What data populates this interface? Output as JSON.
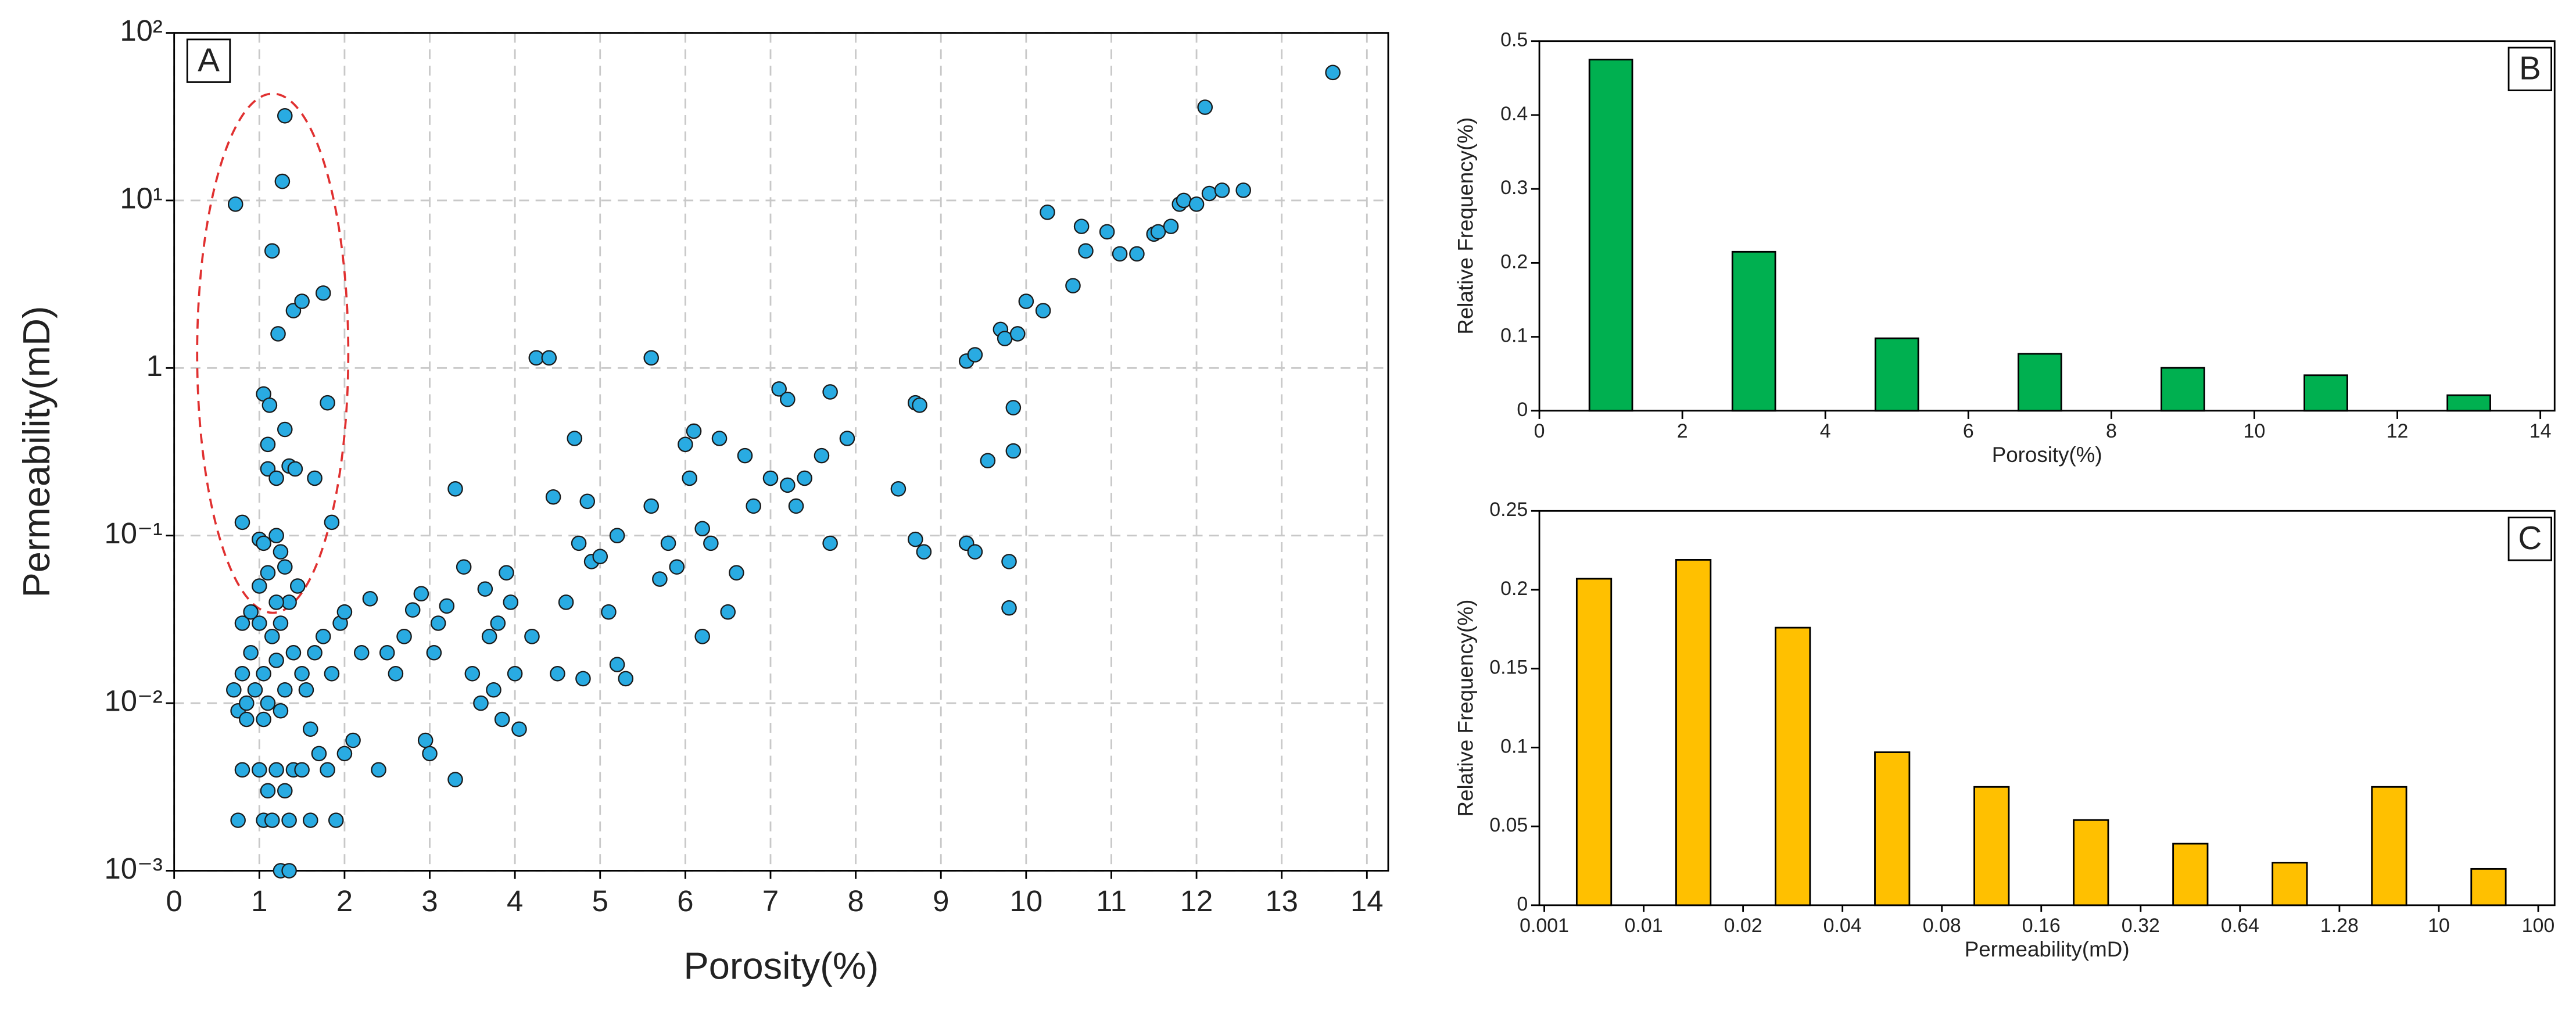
{
  "chart_data": [
    {
      "type": "scatter",
      "label": "A",
      "xlabel": "Porosity(%)",
      "ylabel": "Permeability(mD)",
      "color": "#29abe2",
      "log_y": true,
      "grid": true,
      "xlim": [
        0,
        14.25
      ],
      "ylim": [
        0.001,
        100
      ],
      "xticks": [
        0,
        1,
        2,
        3,
        4,
        5,
        6,
        7,
        8,
        9,
        10,
        11,
        12,
        13,
        14
      ],
      "yticks": [
        {
          "value": 0.001,
          "label": "10⁻³"
        },
        {
          "value": 0.01,
          "label": "10⁻²"
        },
        {
          "value": 0.1,
          "label": "10⁻¹"
        },
        1,
        {
          "value": 10,
          "label": "10¹"
        },
        {
          "value": 100,
          "label": "10²"
        }
      ],
      "x": [
        0.72,
        1.3,
        1.27,
        1.15,
        1.4,
        1.5,
        1.75,
        1.22,
        1.8,
        1.05,
        1.12,
        1.3,
        1.1,
        1.1,
        1.2,
        1.35,
        1.42,
        1.65,
        0.8,
        1.85,
        1.0,
        1.2,
        1.05,
        1.25,
        0.7,
        0.75,
        0.8,
        0.85,
        0.9,
        0.95,
        1.0,
        1.05,
        1.1,
        1.15,
        1.2,
        1.25,
        1.3,
        1.35,
        1.4,
        1.45,
        1.5,
        0.8,
        0.9,
        1.0,
        1.1,
        1.2,
        1.3,
        0.85,
        1.05,
        1.25,
        0.8,
        1.0,
        1.1,
        1.2,
        1.3,
        1.4,
        0.75,
        1.05,
        1.15,
        1.35,
        1.25,
        1.35,
        1.6,
        1.9,
        1.5,
        1.7,
        1.8,
        1.6,
        1.55,
        1.65,
        1.75,
        1.85,
        1.95,
        2.0,
        2.0,
        2.1,
        2.2,
        2.3,
        2.4,
        2.5,
        2.6,
        2.7,
        2.8,
        2.9,
        2.95,
        3.0,
        3.05,
        3.1,
        3.2,
        3.3,
        3.3,
        3.4,
        3.5,
        3.6,
        3.65,
        3.7,
        3.75,
        3.8,
        3.85,
        3.9,
        3.95,
        4.0,
        4.05,
        4.2,
        4.25,
        4.4,
        4.45,
        4.5,
        4.6,
        4.7,
        4.75,
        4.8,
        4.85,
        4.9,
        5.0,
        5.1,
        5.2,
        5.2,
        5.3,
        5.6,
        5.6,
        5.7,
        5.8,
        5.9,
        6.0,
        6.05,
        6.1,
        6.2,
        6.2,
        6.3,
        6.4,
        6.5,
        6.6,
        6.7,
        6.8,
        7.0,
        7.1,
        7.2,
        7.2,
        7.3,
        7.4,
        7.6,
        7.7,
        7.7,
        7.9,
        8.5,
        8.7,
        8.75,
        8.7,
        8.8,
        9.3,
        9.4,
        9.3,
        9.4,
        9.55,
        9.7,
        9.75,
        9.8,
        9.85,
        9.85,
        9.9,
        9.8,
        10.0,
        10.2,
        10.25,
        10.55,
        10.65,
        10.7,
        10.95,
        11.1,
        11.3,
        11.5,
        11.55,
        11.7,
        11.8,
        11.85,
        12.0,
        12.1,
        12.15,
        12.3,
        12.55,
        13.6
      ],
      "values": [
        9.5,
        32,
        13,
        5,
        2.2,
        2.5,
        2.8,
        1.6,
        0.62,
        0.7,
        0.6,
        0.43,
        0.35,
        0.25,
        0.22,
        0.26,
        0.25,
        0.22,
        0.12,
        0.12,
        0.095,
        0.1,
        0.09,
        0.08,
        0.012,
        0.009,
        0.015,
        0.01,
        0.02,
        0.012,
        0.03,
        0.015,
        0.01,
        0.025,
        0.018,
        0.03,
        0.012,
        0.04,
        0.02,
        0.05,
        0.015,
        0.03,
        0.035,
        0.05,
        0.06,
        0.04,
        0.065,
        0.008,
        0.008,
        0.009,
        0.004,
        0.004,
        0.003,
        0.004,
        0.003,
        0.004,
        0.002,
        0.002,
        0.002,
        0.002,
        0.001,
        0.001,
        0.002,
        0.002,
        0.004,
        0.005,
        0.004,
        0.007,
        0.012,
        0.02,
        0.025,
        0.015,
        0.03,
        0.035,
        0.005,
        0.006,
        0.02,
        0.042,
        0.004,
        0.02,
        0.015,
        0.025,
        0.036,
        0.045,
        0.006,
        0.005,
        0.02,
        0.03,
        0.038,
        0.0035,
        0.19,
        0.065,
        0.015,
        0.01,
        0.048,
        0.025,
        0.012,
        0.03,
        0.008,
        0.06,
        0.04,
        0.015,
        0.007,
        0.025,
        1.15,
        1.15,
        0.17,
        0.015,
        0.04,
        0.38,
        0.09,
        0.014,
        0.16,
        0.07,
        0.075,
        0.035,
        0.1,
        0.017,
        0.014,
        1.15,
        0.15,
        0.055,
        0.09,
        0.065,
        0.35,
        0.22,
        0.42,
        0.11,
        0.025,
        0.09,
        0.38,
        0.035,
        0.06,
        0.3,
        0.15,
        0.22,
        0.75,
        0.65,
        0.2,
        0.15,
        0.22,
        0.3,
        0.72,
        0.09,
        0.38,
        0.19,
        0.62,
        0.6,
        0.095,
        0.08,
        1.1,
        1.2,
        0.09,
        0.08,
        0.28,
        1.7,
        1.5,
        0.07,
        0.58,
        0.32,
        1.6,
        0.037,
        2.5,
        2.2,
        8.5,
        3.1,
        7.0,
        5.0,
        6.5,
        4.8,
        4.8,
        6.3,
        6.5,
        7.0,
        9.5,
        10,
        9.5,
        36,
        11,
        11.5,
        11.5,
        58
      ]
    },
    {
      "type": "bar",
      "label": "B",
      "xlabel": "Porosity(%)",
      "ylabel": "Relative Frequency(%)",
      "color": "#00b050",
      "x": [
        1,
        3,
        5,
        7,
        9,
        11,
        13
      ],
      "values": [
        0.475,
        0.215,
        0.098,
        0.077,
        0.058,
        0.048,
        0.021
      ],
      "xlim": [
        0,
        14.2
      ],
      "ylim": [
        0,
        0.5
      ],
      "xticks": [
        0,
        2,
        4,
        6,
        8,
        10,
        12,
        14
      ],
      "yticks": [
        0,
        0.1,
        0.2,
        0.3,
        0.4,
        0.5
      ]
    },
    {
      "type": "histogram",
      "label": "C",
      "xlabel": "Permeability(mD)",
      "ylabel": "Relative Frequency(%)",
      "color": "#ffc000",
      "bins": [
        0.001,
        0.01,
        0.02,
        0.04,
        0.08,
        0.16,
        0.32,
        0.64,
        1.28,
        10,
        100
      ],
      "values": [
        0.207,
        0.219,
        0.176,
        0.097,
        0.075,
        0.054,
        0.039,
        0.027,
        0.075,
        0.023
      ],
      "ylim": [
        0,
        0.25
      ],
      "yticks": [
        0,
        0.05,
        0.1,
        0.15,
        0.2,
        0.25
      ]
    }
  ]
}
